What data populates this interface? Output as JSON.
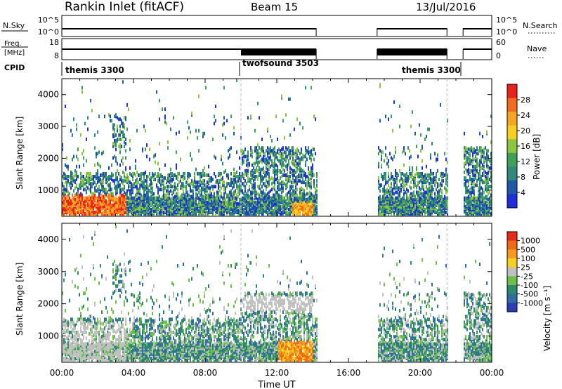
{
  "header": {
    "title": "Rankin Inlet (fitACF)",
    "beam": "Beam 15",
    "date": "13/Jul/2016"
  },
  "status_panels": {
    "nsky": {
      "label": "N.Sky",
      "left_ticks": [
        "10^5",
        "10^0"
      ]
    },
    "freq": {
      "label": "Freq.",
      "unit": "[MHz]",
      "left_ticks": [
        "18",
        "8"
      ],
      "right_ticks": [
        "60",
        "0"
      ]
    },
    "nsearch": {
      "label": "N.Search",
      "right_ticks": [
        "10^5",
        "10^0"
      ]
    },
    "nave": {
      "label": "Nave"
    },
    "cpid": {
      "label": "CPID",
      "modes": [
        "themis 3300",
        "twofsound 3503",
        "themis 3300"
      ]
    }
  },
  "chart_data": [
    {
      "type": "heatmap",
      "title": "",
      "xlabel": "",
      "ylabel": "Slant Range [km]",
      "yticks": [
        "1000",
        "2000",
        "3000",
        "4000"
      ],
      "ylim": [
        180,
        4500
      ],
      "xlim": [
        0,
        24
      ],
      "colorbar": {
        "label": "Power [dB]",
        "ticks": [
          "4",
          "8",
          "12",
          "16",
          "20",
          "24",
          "28"
        ]
      },
      "data_intervals_hours": [
        [
          0,
          14.2
        ],
        [
          17.6,
          21.5
        ],
        [
          22.4,
          24
        ]
      ]
    },
    {
      "type": "heatmap",
      "title": "",
      "xlabel": "Time UT",
      "ylabel": "Slant Range [km]",
      "xticks": [
        "00:00",
        "04:00",
        "08:00",
        "12:00",
        "16:00",
        "20:00",
        "00:00"
      ],
      "yticks": [
        "1000",
        "2000",
        "3000",
        "4000"
      ],
      "ylim": [
        180,
        4500
      ],
      "xlim": [
        0,
        24
      ],
      "colorbar": {
        "label": "Velocity [m s⁻¹]",
        "ticks": [
          "1000",
          "500",
          "100",
          "25",
          "-25",
          "-100",
          "-500",
          "-1000"
        ]
      },
      "data_intervals_hours": [
        [
          0,
          14.2
        ],
        [
          17.6,
          21.5
        ],
        [
          22.4,
          24
        ]
      ]
    }
  ],
  "colors": {
    "power_scale": [
      "#1f2fd9",
      "#1e5aa8",
      "#2e8a7a",
      "#3fa05a",
      "#8cc63f",
      "#f5d020",
      "#f5a623",
      "#f26b1d",
      "#e8231b"
    ],
    "velocity_scale": [
      "#2a3fb5",
      "#2f6ea0",
      "#2d8a6a",
      "#6cc04a",
      "#c0c0c0",
      "#f5d020",
      "#f59a1e",
      "#ee6a14",
      "#e82a1a"
    ]
  }
}
